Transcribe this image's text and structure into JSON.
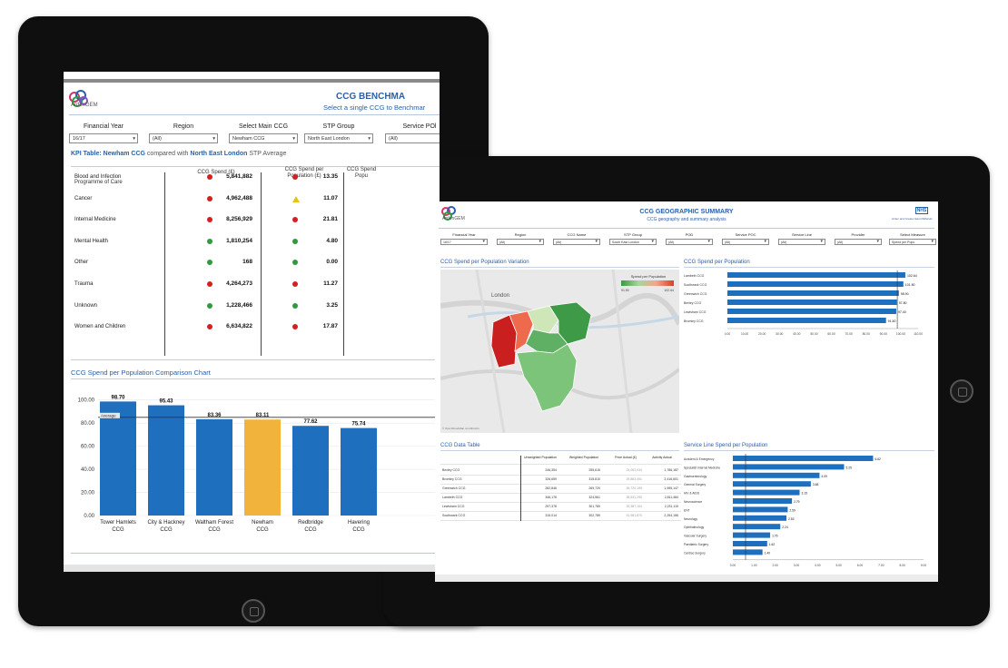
{
  "dashboard1": {
    "logo_text": "ArdenGEM",
    "title": "CCG BENCHMA",
    "subtitle": "Select a single CCG to Benchmar",
    "filters": [
      {
        "label": "Financial Year",
        "value": "16/17"
      },
      {
        "label": "Region",
        "value": "(All)"
      },
      {
        "label": "Select Main CCG",
        "value": "Newham CCG"
      },
      {
        "label": "STP Group",
        "value": "North East London"
      },
      {
        "label": "Service POl",
        "value": "(All)"
      }
    ],
    "kpi_heading": {
      "label": "KPI Table:",
      "ccg": "Newham CCG",
      "text1": "compared with",
      "stp": "North East London",
      "text2": "STP Average"
    },
    "kpi_columns": {
      "programme": "Programme of Care",
      "spend": "CCG Spend (£)",
      "spend_per_pop": "CCG Spend per Population (£)",
      "third": "CCG Spend Popu"
    },
    "kpi_rows": [
      {
        "programme": "Blood and Infection",
        "spend": "5,841,882",
        "spend_status": "red",
        "per_pop": "13.35",
        "per_pop_status": "red"
      },
      {
        "programme": "Cancer",
        "spend": "4,962,488",
        "spend_status": "red",
        "per_pop": "11.07",
        "per_pop_status": "amber"
      },
      {
        "programme": "Internal Medicine",
        "spend": "8,256,929",
        "spend_status": "red",
        "per_pop": "21.81",
        "per_pop_status": "red"
      },
      {
        "programme": "Mental Health",
        "spend": "1,810,254",
        "spend_status": "green",
        "per_pop": "4.80",
        "per_pop_status": "green"
      },
      {
        "programme": "Other",
        "spend": "168",
        "spend_status": "green",
        "per_pop": "0.00",
        "per_pop_status": "green"
      },
      {
        "programme": "Trauma",
        "spend": "4,264,273",
        "spend_status": "red",
        "per_pop": "11.27",
        "per_pop_status": "red"
      },
      {
        "programme": "Unknown",
        "spend": "1,228,466",
        "spend_status": "green",
        "per_pop": "3.25",
        "per_pop_status": "green"
      },
      {
        "programme": "Women and Children",
        "spend": "6,634,822",
        "spend_status": "red",
        "per_pop": "17.87",
        "per_pop_status": "red"
      }
    ],
    "chart_title": "CCG Spend per Population Comparison Chart",
    "colors": {
      "bar": "#1f6fbf",
      "highlight": "#f2b33d",
      "accent": "#2b5fa8"
    }
  },
  "chart_data": [
    {
      "type": "bar",
      "title": "CCG Spend per Population Comparison Chart",
      "categories": [
        "Tower Hamlets CCG",
        "City & Hackney CCG",
        "Waltham Forest CCG",
        "Newham CCG",
        "Redbridge CCG",
        "Havering CCG"
      ],
      "values": [
        98.7,
        95.43,
        83.36,
        83.11,
        77.62,
        75.74
      ],
      "value_labels": [
        "98.70",
        "95.43",
        "83.36",
        "83.11",
        "77.62",
        "75.74"
      ],
      "highlight_category": "Newham CCG",
      "reference_line": {
        "label": "Average",
        "value": 85
      },
      "yticks": [
        "100.00",
        "80.00",
        "60.00",
        "40.00",
        "20.00",
        "0.00"
      ],
      "ylim": [
        0,
        110
      ]
    },
    {
      "type": "bar",
      "orientation": "horizontal",
      "title": "CCG Spend per Population",
      "categories": [
        "Lambeth CCG",
        "Southwark CCG",
        "Greenwich CCG",
        "Bexley CCG",
        "Lewisham CCG",
        "Bromley CCG"
      ],
      "values": [
        102.64,
        101.5,
        98.9,
        97.8,
        97.4,
        91.5
      ],
      "value_labels": [
        "102.64",
        "101.50",
        "98.90",
        "97.80",
        "97.40",
        "91.50"
      ],
      "reference_line": {
        "value": 98
      },
      "xticks": [
        "0.00",
        "10.00",
        "20.00",
        "30.00",
        "40.00",
        "50.00",
        "60.00",
        "70.00",
        "80.00",
        "90.00",
        "100.00",
        "110.00"
      ],
      "xlim": [
        0,
        110
      ]
    },
    {
      "type": "bar",
      "orientation": "horizontal",
      "title": "Service Line Spend per Population",
      "categories": [
        "Accident & Emergency",
        "Specialist Internal Medicine",
        "Gastroenterology",
        "General Surgery",
        "HIV & AIDS",
        "Neuroscience",
        "ENT",
        "Neurology",
        "Ophthalmology",
        "Vascular Surgery",
        "Paediatric Surgery",
        "Cardiac Surgery"
      ],
      "values": [
        6.62,
        5.25,
        4.09,
        3.68,
        3.15,
        2.79,
        2.59,
        2.53,
        2.24,
        1.76,
        1.62,
        1.4
      ],
      "value_labels": [
        "6.62",
        "5.25",
        "4.09",
        "3.68",
        "3.15",
        "2.79",
        "2.59",
        "2.53",
        "2.24",
        "1.76",
        "1.62",
        "1.40"
      ],
      "reference_line": {
        "value": 0.6
      },
      "xticks": [
        "0.00",
        "1.00",
        "2.00",
        "3.00",
        "4.00",
        "5.00",
        "6.00",
        "7.00",
        "8.00",
        "9.00"
      ],
      "xlim": [
        0,
        9
      ]
    }
  ],
  "dashboard2": {
    "logo_text": "ArdenGEM",
    "title": "CCG GEOGRAPHIC SUMMARY",
    "subtitle": "CCG geography and summary analysis",
    "nhs_logo": "NHS",
    "nhs_sub": "Arden and Greater East Midlands",
    "filters": [
      {
        "label": "Financial Year",
        "value": "16/17"
      },
      {
        "label": "Region",
        "value": "(All)"
      },
      {
        "label": "CCG Name",
        "value": "(All)"
      },
      {
        "label": "STP Group",
        "value": "South East London"
      },
      {
        "label": "POD",
        "value": "(All)"
      },
      {
        "label": "Service POC",
        "value": "(All)"
      },
      {
        "label": "Service Line",
        "value": "(All)"
      },
      {
        "label": "Provider",
        "value": "(All)"
      },
      {
        "label": "Select Measure",
        "value": "Spend per Popu"
      }
    ],
    "map_title": "CCG Spend per Population Variation",
    "map_place": "London",
    "map_legend_title": "Spend per Population",
    "map_legend_min": "91.50",
    "map_legend_max": "102.64",
    "map_caption": "© OpenStreetMap contributors",
    "bar_title": "CCG Spend per Population",
    "table_title": "CCG Data Table",
    "table_headers": [
      "",
      "Unweighted Population",
      "Weighted Population",
      "Price Actual (£)",
      "Activity Actual"
    ],
    "table_rows": [
      {
        "ccg": "Bexley CCG",
        "unw": "246,354",
        "w": "255,615",
        "price": "24,051,034",
        "act": "1,786,187"
      },
      {
        "ccg": "Bromley CCG",
        "unw": "326,659",
        "w": "315,810",
        "price": "29,883,491",
        "act": "2,416,601"
      },
      {
        "ccg": "Greenwich CCG",
        "unw": "282,846",
        "w": "269,720",
        "price": "26,720,195",
        "act": "1,995,147"
      },
      {
        "ccg": "Lambeth CCG",
        "unw": "346,176",
        "w": "324,561",
        "price": "35,531,290",
        "act": "2,811,484"
      },
      {
        "ccg": "Lewisham CCG",
        "unw": "297,378",
        "w": "301,780",
        "price": "29,387,104",
        "act": "2,231,119"
      },
      {
        "ccg": "Southwark CCG",
        "unw": "315,014",
        "w": "302,789",
        "price": "31,981,870",
        "act": "2,254,156"
      }
    ],
    "service_title": "Service Line Spend per Population"
  }
}
